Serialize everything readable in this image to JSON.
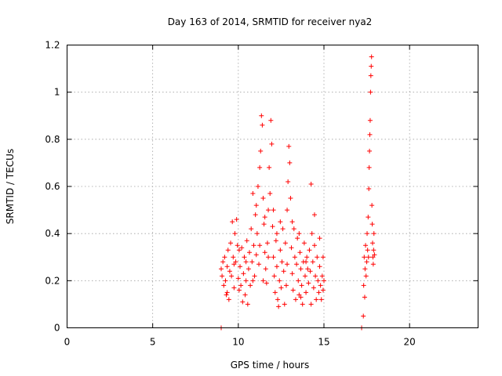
{
  "chart_data": {
    "type": "scatter",
    "title": "Day 163 of 2014, SRMTID for receiver nya2",
    "xlabel": "GPS time / hours",
    "ylabel": "SRMTID / TECUs",
    "xlim": [
      0,
      24
    ],
    "ylim": [
      0,
      1.2
    ],
    "x_ticks": [
      0,
      5,
      10,
      15,
      20
    ],
    "x_tick_labels": [
      "0",
      "5",
      "10",
      "15",
      "20"
    ],
    "y_ticks": [
      0,
      0.2,
      0.4,
      0.6,
      0.8,
      1.0,
      1.2
    ],
    "y_tick_labels": [
      "0",
      "0.2",
      "0.4",
      "0.6",
      "0.8",
      "1",
      "1.2"
    ],
    "grid": true,
    "marker": "+",
    "color": "#ff0000",
    "series": [
      {
        "name": "SRMTID",
        "points": [
          [
            9.0,
            0.0
          ],
          [
            17.2,
            0.0
          ],
          [
            9.0,
            0.25
          ],
          [
            9.05,
            0.22
          ],
          [
            9.1,
            0.28
          ],
          [
            9.15,
            0.18
          ],
          [
            9.2,
            0.3
          ],
          [
            9.25,
            0.2
          ],
          [
            9.3,
            0.14
          ],
          [
            9.35,
            0.26
          ],
          [
            9.4,
            0.33
          ],
          [
            9.45,
            0.12
          ],
          [
            9.5,
            0.24
          ],
          [
            9.55,
            0.36
          ],
          [
            9.6,
            0.22
          ],
          [
            9.65,
            0.45
          ],
          [
            9.7,
            0.3
          ],
          [
            9.75,
            0.17
          ],
          [
            9.8,
            0.4
          ],
          [
            9.85,
            0.28
          ],
          [
            9.9,
            0.46
          ],
          [
            9.95,
            0.35
          ],
          [
            10.0,
            0.21
          ],
          [
            10.05,
            0.16
          ],
          [
            10.1,
            0.26
          ],
          [
            10.15,
            0.18
          ],
          [
            10.2,
            0.34
          ],
          [
            10.25,
            0.11
          ],
          [
            10.3,
            0.23
          ],
          [
            10.35,
            0.3
          ],
          [
            10.4,
            0.14
          ],
          [
            10.45,
            0.2
          ],
          [
            10.5,
            0.37
          ],
          [
            10.55,
            0.1
          ],
          [
            10.6,
            0.25
          ],
          [
            10.65,
            0.32
          ],
          [
            10.7,
            0.18
          ],
          [
            10.75,
            0.42
          ],
          [
            10.8,
            0.28
          ],
          [
            10.85,
            0.57
          ],
          [
            10.9,
            0.35
          ],
          [
            10.95,
            0.22
          ],
          [
            11.0,
            0.48
          ],
          [
            11.05,
            0.31
          ],
          [
            11.1,
            0.4
          ],
          [
            11.15,
            0.6
          ],
          [
            11.2,
            0.27
          ],
          [
            11.25,
            0.68
          ],
          [
            11.3,
            0.75
          ],
          [
            11.35,
            0.9
          ],
          [
            11.4,
            0.86
          ],
          [
            11.45,
            0.55
          ],
          [
            11.5,
            0.44
          ],
          [
            11.55,
            0.32
          ],
          [
            11.6,
            0.25
          ],
          [
            11.65,
            0.19
          ],
          [
            11.7,
            0.36
          ],
          [
            11.75,
            0.5
          ],
          [
            11.8,
            0.68
          ],
          [
            11.85,
            0.57
          ],
          [
            11.9,
            0.88
          ],
          [
            11.95,
            0.78
          ],
          [
            12.0,
            0.43
          ],
          [
            12.05,
            0.3
          ],
          [
            12.1,
            0.22
          ],
          [
            12.15,
            0.15
          ],
          [
            12.2,
            0.37
          ],
          [
            12.25,
            0.26
          ],
          [
            12.3,
            0.12
          ],
          [
            12.35,
            0.09
          ],
          [
            12.4,
            0.2
          ],
          [
            12.45,
            0.33
          ],
          [
            12.5,
            0.17
          ],
          [
            12.55,
            0.28
          ],
          [
            12.6,
            0.42
          ],
          [
            12.65,
            0.24
          ],
          [
            12.7,
            0.1
          ],
          [
            12.75,
            0.36
          ],
          [
            12.8,
            0.18
          ],
          [
            12.85,
            0.5
          ],
          [
            12.9,
            0.62
          ],
          [
            12.95,
            0.77
          ],
          [
            13.0,
            0.7
          ],
          [
            13.05,
            0.55
          ],
          [
            13.1,
            0.34
          ],
          [
            13.15,
            0.23
          ],
          [
            13.2,
            0.16
          ],
          [
            13.25,
            0.42
          ],
          [
            13.3,
            0.3
          ],
          [
            13.35,
            0.12
          ],
          [
            13.4,
            0.27
          ],
          [
            13.45,
            0.38
          ],
          [
            13.5,
            0.2
          ],
          [
            13.55,
            0.14
          ],
          [
            13.6,
            0.32
          ],
          [
            13.65,
            0.25
          ],
          [
            13.7,
            0.18
          ],
          [
            13.75,
            0.1
          ],
          [
            13.8,
            0.28
          ],
          [
            13.85,
            0.36
          ],
          [
            13.9,
            0.22
          ],
          [
            13.95,
            0.15
          ],
          [
            14.0,
            0.3
          ],
          [
            14.05,
            0.25
          ],
          [
            14.1,
            0.19
          ],
          [
            14.15,
            0.33
          ],
          [
            14.2,
            0.24
          ],
          [
            14.25,
            0.61
          ],
          [
            14.3,
            0.4
          ],
          [
            14.35,
            0.28
          ],
          [
            14.4,
            0.17
          ],
          [
            14.45,
            0.35
          ],
          [
            14.5,
            0.22
          ],
          [
            14.55,
            0.12
          ],
          [
            14.6,
            0.3
          ],
          [
            14.65,
            0.2
          ],
          [
            14.7,
            0.15
          ],
          [
            14.75,
            0.26
          ],
          [
            14.8,
            0.18
          ],
          [
            14.85,
            0.12
          ],
          [
            14.9,
            0.22
          ],
          [
            14.95,
            0.16
          ],
          [
            15.0,
            0.2
          ],
          [
            9.35,
            0.15
          ],
          [
            9.75,
            0.27
          ],
          [
            10.05,
            0.33
          ],
          [
            10.45,
            0.28
          ],
          [
            10.85,
            0.2
          ],
          [
            11.05,
            0.52
          ],
          [
            11.25,
            0.35
          ],
          [
            11.55,
            0.47
          ],
          [
            11.75,
            0.3
          ],
          [
            12.05,
            0.5
          ],
          [
            12.45,
            0.45
          ],
          [
            12.85,
            0.27
          ],
          [
            13.15,
            0.45
          ],
          [
            13.55,
            0.4
          ],
          [
            13.95,
            0.28
          ],
          [
            14.25,
            0.1
          ],
          [
            14.45,
            0.48
          ],
          [
            14.75,
            0.38
          ],
          [
            14.95,
            0.3
          ],
          [
            11.45,
            0.2
          ],
          [
            12.25,
            0.4
          ],
          [
            13.65,
            0.13
          ],
          [
            17.3,
            0.05
          ],
          [
            17.32,
            0.18
          ],
          [
            17.35,
            0.3
          ],
          [
            17.38,
            0.13
          ],
          [
            17.4,
            0.25
          ],
          [
            17.43,
            0.35
          ],
          [
            17.46,
            0.22
          ],
          [
            17.5,
            0.28
          ],
          [
            17.52,
            0.4
          ],
          [
            17.55,
            0.33
          ],
          [
            17.58,
            0.47
          ],
          [
            17.6,
            0.3
          ],
          [
            17.62,
            0.59
          ],
          [
            17.64,
            0.68
          ],
          [
            17.66,
            0.75
          ],
          [
            17.68,
            0.82
          ],
          [
            17.7,
            0.88
          ],
          [
            17.72,
            1.0
          ],
          [
            17.74,
            1.07
          ],
          [
            17.76,
            1.11
          ],
          [
            17.78,
            1.15
          ],
          [
            17.8,
            0.52
          ],
          [
            17.82,
            0.44
          ],
          [
            17.84,
            0.36
          ],
          [
            17.86,
            0.3
          ],
          [
            17.88,
            0.27
          ],
          [
            17.9,
            0.33
          ],
          [
            17.92,
            0.4
          ],
          [
            17.95,
            0.31
          ]
        ]
      }
    ]
  }
}
